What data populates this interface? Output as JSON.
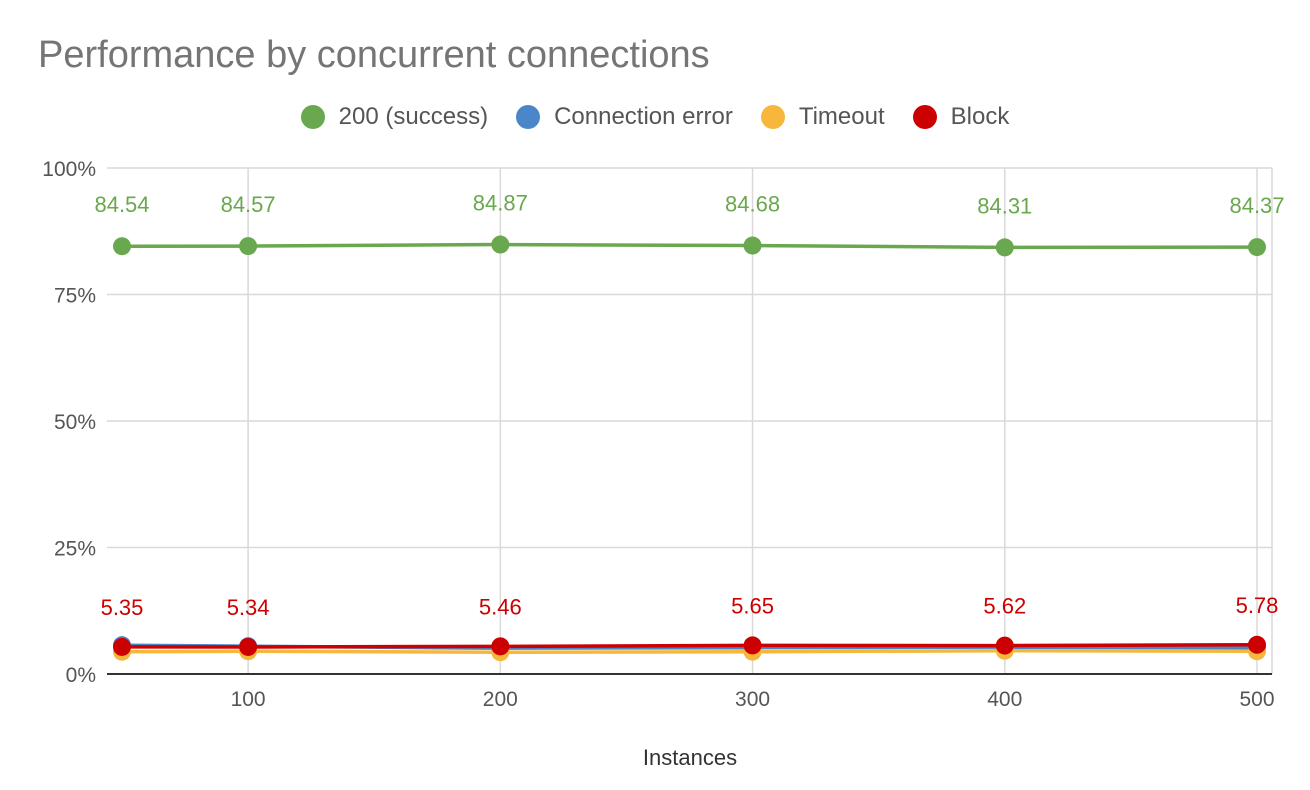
{
  "chart_data": {
    "type": "line",
    "title": "Performance by concurrent connections",
    "xlabel": "Instances",
    "ylabel": "",
    "x": [
      50,
      100,
      200,
      300,
      400,
      500
    ],
    "xlim": [
      50,
      500
    ],
    "xticks": [
      100,
      200,
      300,
      400,
      500
    ],
    "ylim": [
      0,
      100
    ],
    "yticks": [
      0,
      25,
      50,
      75,
      100
    ],
    "ytick_labels": [
      "0%",
      "25%",
      "50%",
      "75%",
      "100%"
    ],
    "grid": true,
    "legend_position": "top",
    "series": [
      {
        "name": "200 (success)",
        "color": "#6aa84f",
        "values": [
          84.54,
          84.57,
          84.87,
          84.68,
          84.31,
          84.37
        ],
        "labels": [
          "84.54",
          "84.57",
          "84.87",
          "84.68",
          "84.31",
          "84.37"
        ]
      },
      {
        "name": "Connection error",
        "color": "#4a86c8",
        "values": [
          5.7,
          5.5,
          5.1,
          5.2,
          5.3,
          5.2
        ]
      },
      {
        "name": "Timeout",
        "color": "#f6b73c",
        "values": [
          4.4,
          4.5,
          4.3,
          4.4,
          4.6,
          4.5
        ]
      },
      {
        "name": "Block",
        "color": "#cc0000",
        "values": [
          5.35,
          5.34,
          5.46,
          5.65,
          5.62,
          5.78
        ],
        "labels": [
          "5.35",
          "5.34",
          "5.46",
          "5.65",
          "5.62",
          "5.78"
        ]
      }
    ]
  }
}
